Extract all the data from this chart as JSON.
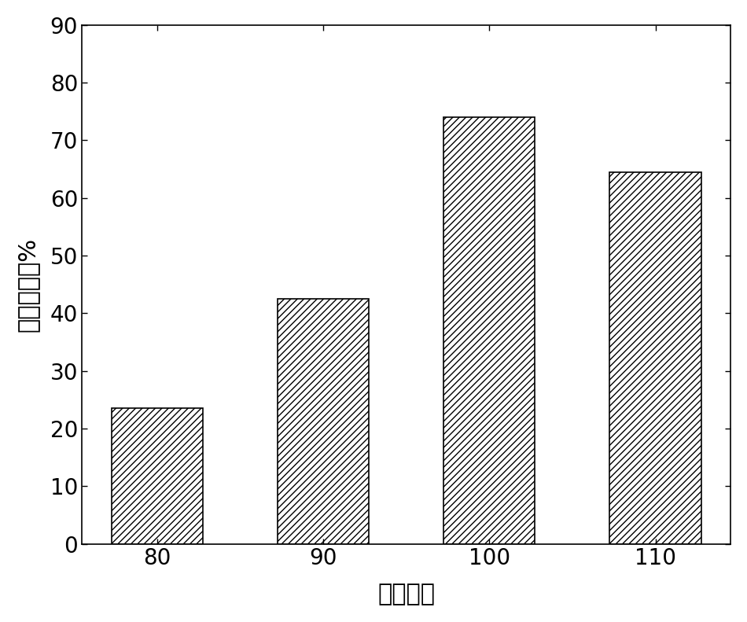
{
  "categories": [
    "80",
    "90",
    "100",
    "110"
  ],
  "values": [
    23.5,
    42.5,
    74.0,
    64.5
  ],
  "bar_color": "#ffffff",
  "bar_edgecolor": "#000000",
  "hatch": "////",
  "xlabel": "再生温度",
  "ylabel": "再生效率，%",
  "ylim": [
    0,
    90
  ],
  "yticks": [
    0,
    10,
    20,
    30,
    40,
    50,
    60,
    70,
    80,
    90
  ],
  "xlabel_fontsize": 22,
  "ylabel_fontsize": 22,
  "tick_fontsize": 20,
  "bar_width": 0.55,
  "background_color": "#ffffff",
  "linewidth": 1.2
}
